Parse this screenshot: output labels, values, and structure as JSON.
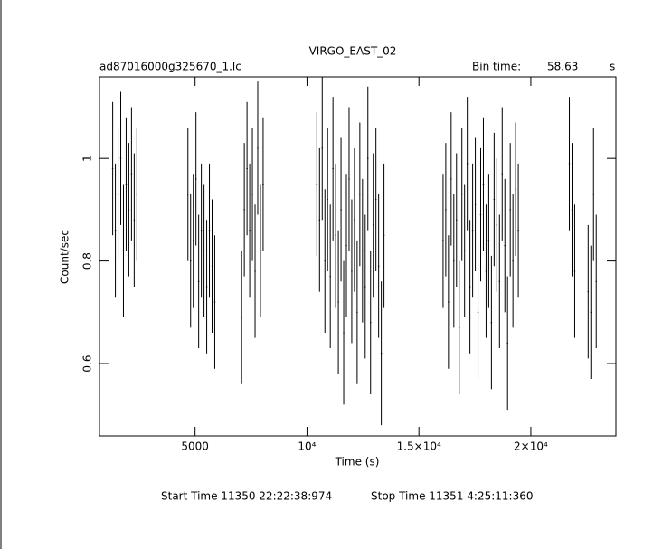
{
  "chart_data": {
    "type": "errorbar",
    "title": "VIRGO_EAST_02",
    "subtitle": "ad87016000g325670_1.lc",
    "bin_time_label": "Bin time:",
    "bin_time": "58.63",
    "bin_time_unit": "s",
    "xlabel": "Time (s)",
    "ylabel": "Count/sec",
    "start_time": "Start Time 11350 22:22:38:974",
    "stop_time": "Stop Time 11351  4:25:11:360",
    "xlim": [
      730,
      23800
    ],
    "ylim": [
      0.459,
      1.159
    ],
    "xticks": [
      5000,
      {
        "value": 10000,
        "label": "10⁴"
      },
      {
        "value": 15000,
        "label": "1.5×10⁴"
      },
      {
        "value": 20000,
        "label": "2×10⁴"
      }
    ],
    "yticks": [
      0.6,
      0.8,
      1
    ],
    "series": [
      {
        "color": "#000000",
        "x": [
          1320,
          1440,
          1560,
          1680,
          1800,
          1920,
          2040,
          2160,
          2280,
          2400,
          4680,
          4800,
          4920,
          5040,
          5160,
          5280,
          5400,
          5520,
          5640,
          5760,
          5880,
          7080,
          7200,
          7320,
          7440,
          7560,
          7680,
          7800,
          7920,
          8040,
          10440,
          10560,
          10680,
          10800,
          10920,
          11040,
          11160,
          11280,
          11400,
          11520,
          11640,
          11760,
          11880,
          12000,
          12120,
          12240,
          12360,
          12480,
          12600,
          12720,
          12840,
          12960,
          13080,
          13200,
          13320,
          13440,
          16080,
          16200,
          16320,
          16440,
          16560,
          16680,
          16800,
          16920,
          17040,
          17160,
          17280,
          17400,
          17520,
          17640,
          17760,
          17880,
          18000,
          18120,
          18240,
          18360,
          18480,
          18600,
          18720,
          18840,
          18960,
          19080,
          19200,
          19320,
          19440,
          21720,
          21840,
          21960,
          22560,
          22680,
          22800,
          22920
        ],
        "values": [
          0.98,
          0.86,
          0.93,
          1.0,
          0.82,
          0.95,
          0.9,
          0.97,
          0.88,
          0.93,
          0.93,
          0.8,
          0.84,
          0.96,
          0.76,
          0.86,
          0.82,
          0.75,
          0.86,
          0.79,
          0.72,
          0.69,
          0.9,
          0.98,
          0.86,
          0.93,
          0.78,
          1.02,
          0.82,
          0.95,
          0.95,
          0.88,
          1.02,
          0.8,
          0.92,
          0.77,
          0.98,
          0.85,
          0.72,
          0.9,
          0.66,
          0.83,
          0.96,
          0.78,
          0.88,
          0.7,
          0.93,
          0.82,
          0.75,
          1.0,
          0.68,
          0.87,
          0.92,
          0.79,
          0.62,
          0.85,
          0.84,
          0.9,
          0.72,
          0.96,
          0.8,
          0.88,
          0.67,
          0.93,
          0.82,
          0.99,
          0.75,
          0.86,
          0.91,
          0.7,
          0.89,
          0.95,
          0.78,
          0.84,
          0.68,
          0.92,
          0.87,
          0.76,
          0.97,
          0.83,
          0.64,
          0.9,
          0.8,
          0.94,
          0.86,
          0.99,
          0.9,
          0.78,
          0.74,
          0.7,
          0.93,
          0.76
        ],
        "errors": [
          0.13,
          0.13,
          0.13,
          0.13,
          0.13,
          0.13,
          0.13,
          0.13,
          0.13,
          0.13,
          0.13,
          0.13,
          0.13,
          0.13,
          0.13,
          0.13,
          0.13,
          0.13,
          0.13,
          0.13,
          0.13,
          0.13,
          0.13,
          0.13,
          0.13,
          0.13,
          0.13,
          0.13,
          0.13,
          0.13,
          0.14,
          0.14,
          0.14,
          0.14,
          0.14,
          0.14,
          0.14,
          0.14,
          0.14,
          0.14,
          0.14,
          0.14,
          0.14,
          0.14,
          0.14,
          0.14,
          0.14,
          0.14,
          0.14,
          0.14,
          0.14,
          0.14,
          0.14,
          0.14,
          0.14,
          0.14,
          0.13,
          0.13,
          0.13,
          0.13,
          0.13,
          0.13,
          0.13,
          0.13,
          0.13,
          0.13,
          0.13,
          0.13,
          0.13,
          0.13,
          0.13,
          0.13,
          0.13,
          0.13,
          0.13,
          0.13,
          0.13,
          0.13,
          0.13,
          0.13,
          0.13,
          0.13,
          0.13,
          0.13,
          0.13,
          0.13,
          0.13,
          0.13,
          0.13,
          0.13,
          0.13,
          0.13
        ]
      }
    ]
  }
}
